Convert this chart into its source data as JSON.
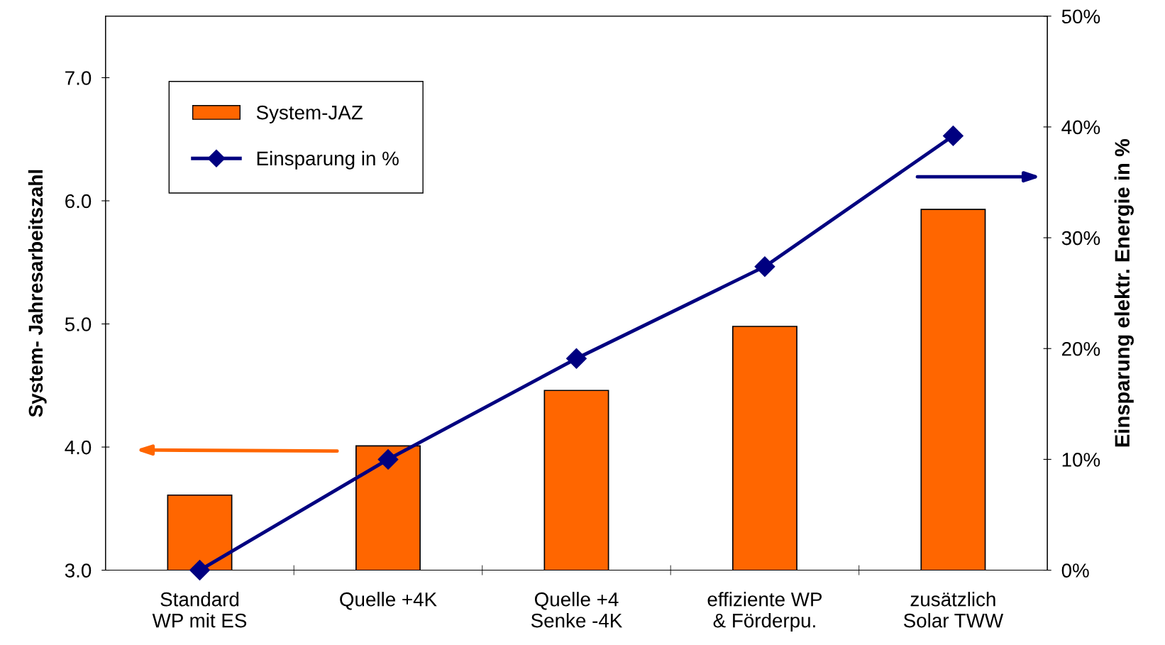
{
  "chart_data": {
    "type": "bar",
    "categories": [
      "Standard\nWP mit ES",
      "Quelle +4K",
      "Quelle +4\nSenke -4K",
      "effiziente WP\n& Förderpu.",
      "zusätzlich\nSolar TWW"
    ],
    "ylabel": "System- Jahresarbeitszahl",
    "y2label": "Einsparung elektr. Energie in %",
    "series": [
      {
        "name": "System-JAZ",
        "color": "#ff6600",
        "values": [
          3.61,
          4.01,
          4.46,
          4.98,
          5.93
        ]
      },
      {
        "name": "Einsparung in %",
        "type": "line",
        "axis": "y2",
        "color": "#000080",
        "marker": "diamond",
        "values": [
          0,
          10,
          19.1,
          27.4,
          39.2
        ]
      }
    ],
    "ylim": [
      3,
      7.5
    ],
    "yticks": [
      {
        "value": 3,
        "label": "3.0"
      },
      {
        "value": 4,
        "label": "4.0"
      },
      {
        "value": 5,
        "label": "5.0"
      },
      {
        "value": 6,
        "label": "6.0"
      },
      {
        "value": 7,
        "label": "7.0"
      }
    ],
    "y2lim": [
      0,
      50
    ],
    "y2ticks": [
      {
        "value": 0,
        "label": "0%"
      },
      {
        "value": 10,
        "label": "10%"
      },
      {
        "value": 20,
        "label": "20%"
      },
      {
        "value": 30,
        "label": "30%"
      },
      {
        "value": 40,
        "label": "40%"
      },
      {
        "value": 50,
        "label": "50%"
      }
    ],
    "legend": "top left",
    "grid": false
  }
}
